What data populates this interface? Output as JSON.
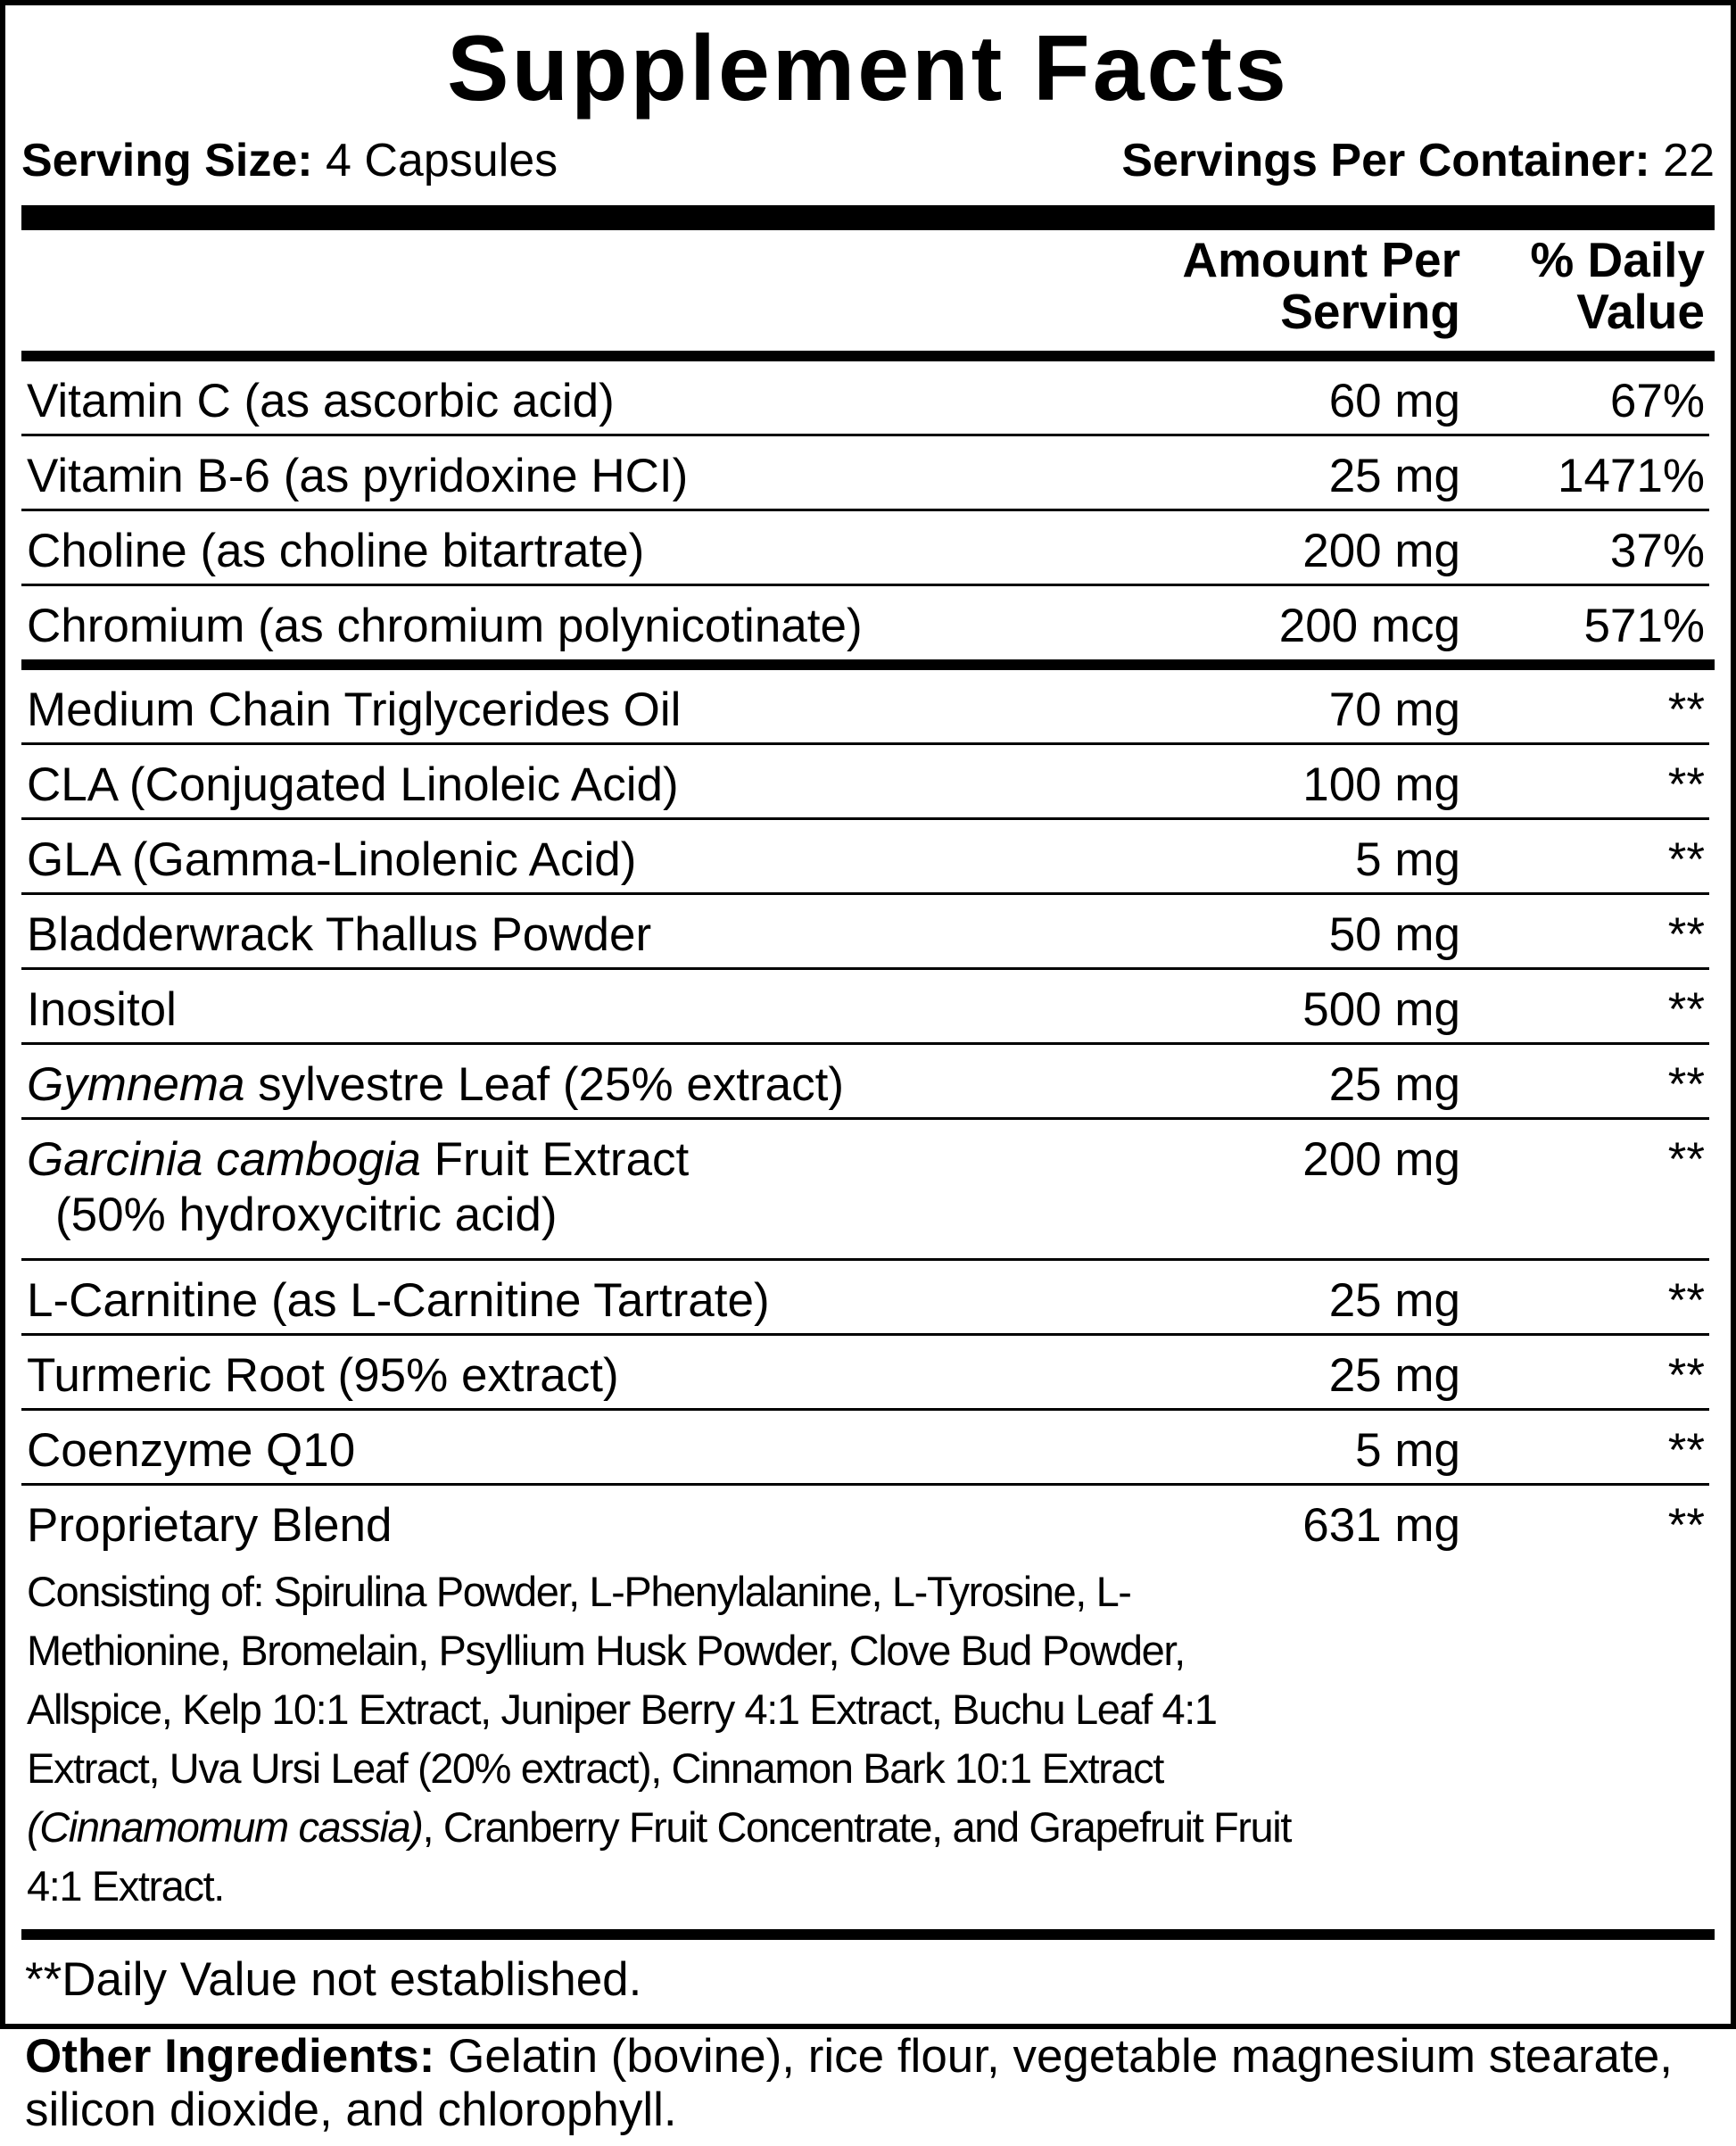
{
  "title": "Supplement Facts",
  "serving": {
    "size_label": "Serving Size:",
    "size_value": " 4 Capsules",
    "per_container_label": "Servings Per Container:",
    "per_container_value": " 22"
  },
  "header": {
    "amount_line1": "Amount Per",
    "amount_line2": "Serving",
    "dv_line1": "% Daily",
    "dv_line2": "Value"
  },
  "vitamins": [
    {
      "name": "Vitamin C (as ascorbic acid)",
      "amount": "60 mg",
      "dv": "67%"
    },
    {
      "name": "Vitamin B-6 (as pyridoxine HCI)",
      "amount": "25 mg",
      "dv": "1471%"
    },
    {
      "name": "Choline (as choline bitartrate)",
      "amount": "200 mg",
      "dv": "37%"
    },
    {
      "name": "Chromium (as chromium polynicotinate)",
      "amount": "200 mcg",
      "dv": "571%"
    }
  ],
  "ingredients": [
    {
      "name": "Medium Chain Triglycerides Oil",
      "amount": "70 mg",
      "dv": "**"
    },
    {
      "name": "CLA (Conjugated Linoleic Acid)",
      "amount": "100 mg",
      "dv": "**"
    },
    {
      "name": "GLA (Gamma-Linolenic Acid)",
      "amount": "5 mg",
      "dv": "**"
    },
    {
      "name": "Bladderwrack Thallus Powder",
      "amount": "50 mg",
      "dv": "**"
    },
    {
      "name": "Inositol",
      "amount": "500 mg",
      "dv": "**"
    },
    {
      "name_italic": "Gymnema",
      "name": " sylvestre Leaf (25% extract)",
      "amount": "25 mg",
      "dv": "**"
    },
    {
      "name_italic": "Garcinia cambogia",
      "name": " Fruit Extract",
      "name_sub": "(50% hydroxycitric acid)",
      "amount": "200 mg",
      "dv": "**"
    },
    {
      "name": "L-Carnitine (as L-Carnitine Tartrate)",
      "amount": "25 mg",
      "dv": "**"
    },
    {
      "name": "Turmeric Root (95% extract)",
      "amount": "25 mg",
      "dv": "**"
    },
    {
      "name": "Coenzyme Q10",
      "amount": "5 mg",
      "dv": "**"
    }
  ],
  "blend": {
    "name": "Proprietary Blend",
    "amount": "631 mg",
    "dv": "**",
    "desc_part1": "Consisting of: Spirulina Powder, L-Phenylalanine, L-Tyrosine, L-Methionine, Bromelain, Psyllium Husk Powder, Clove Bud Powder, Allspice, Kelp 10:1 Extract, Juniper Berry 4:1 Extract, Buchu Leaf 4:1 Extract, Uva Ursi Leaf (20% extract), Cinnamon Bark 10:1 Extract ",
    "desc_italic": "(Cinnamomum cassia)",
    "desc_part2": ", Cranberry Fruit Concentrate, and Grapefruit Fruit 4:1 Extract."
  },
  "footnote": "**Daily Value not established.",
  "other": {
    "label": "Other Ingredients:",
    "text": " Gelatin (bovine), rice flour, vegetable magnesium stearate, silicon dioxide, and chlorophyll."
  }
}
